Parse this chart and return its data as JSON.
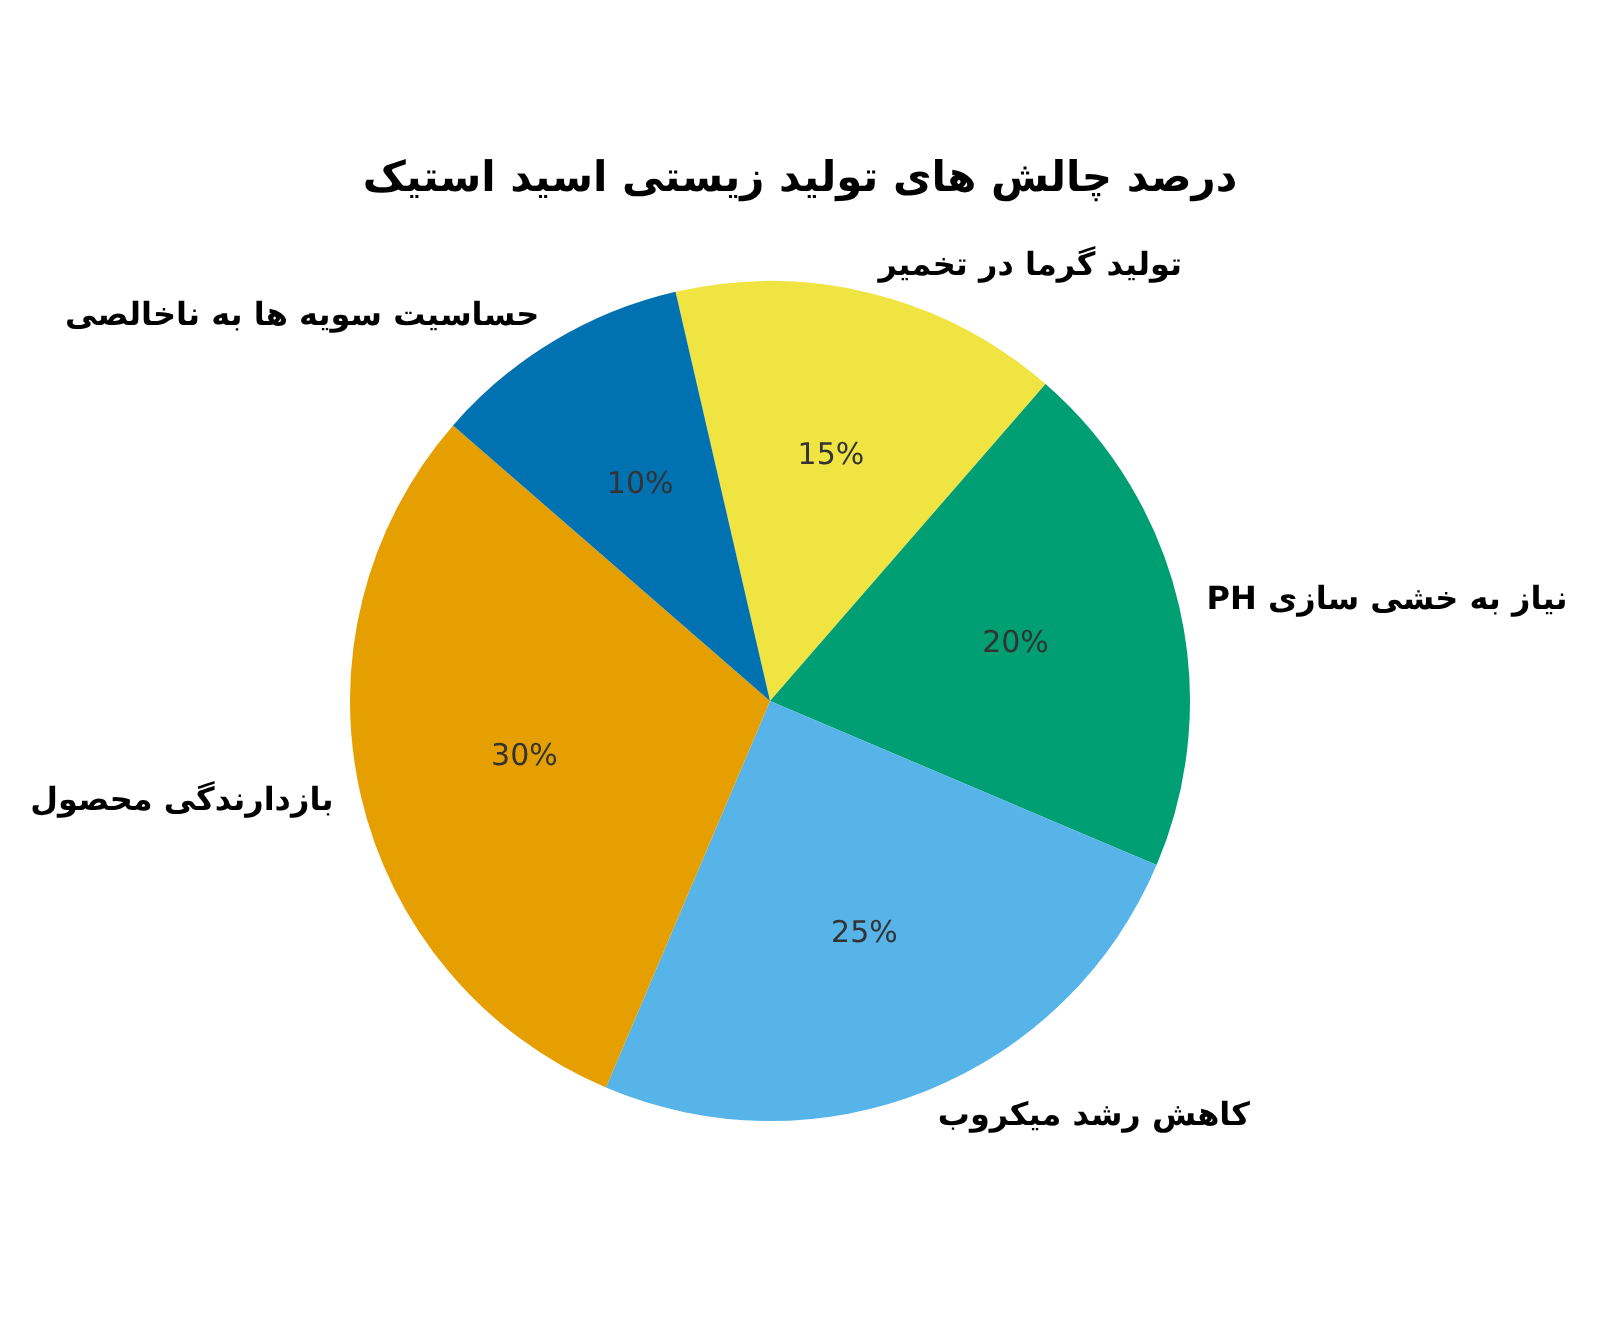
{
  "chart_data": {
    "type": "pie",
    "title": "درصد چالش های تولید زیستی اسید استیک",
    "categories": [
      "تولید گرما در تخمیر",
      "نیاز به خشی سازی PH",
      "کاهش رشد میکروب",
      "بازدارندگی محصول",
      "حساسیت سویه ها به ناخالصی"
    ],
    "values": [
      15,
      20,
      25,
      30,
      10
    ],
    "colors": [
      "#f0e442",
      "#009e73",
      "#56b4e9",
      "#e69f00",
      "#0072b2"
    ],
    "value_labels": [
      "15%",
      "20%",
      "25%",
      "30%",
      "10%"
    ],
    "legend": false
  }
}
